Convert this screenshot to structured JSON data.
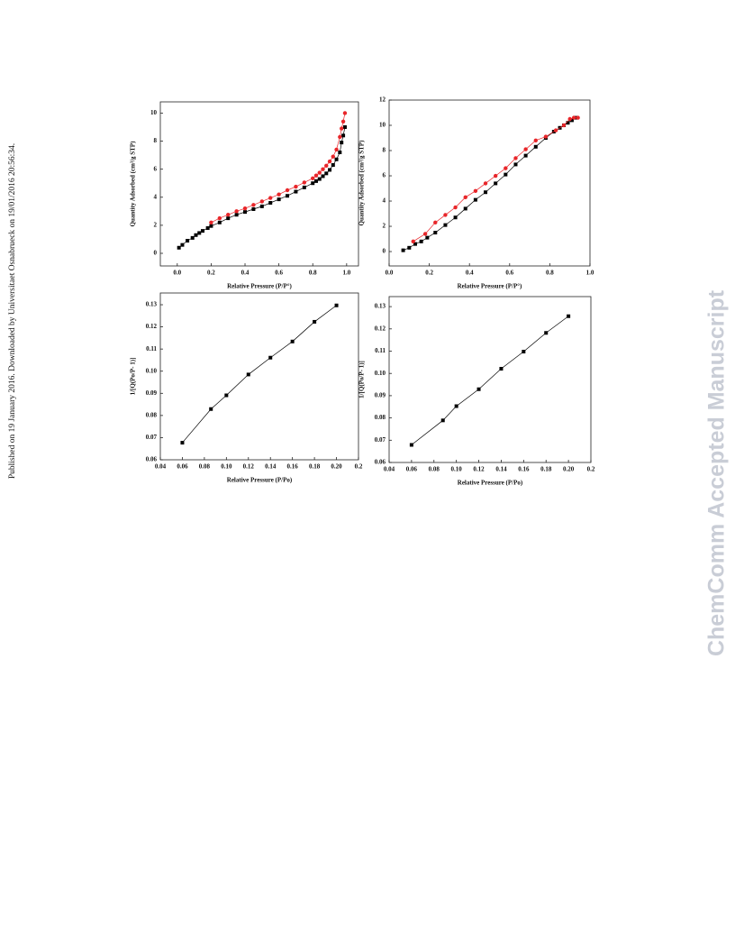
{
  "side_note": "Published on 19 January 2016. Downloaded by Universitaet Osnabrueck on 19/01/2016 20:56:34.",
  "watermark": "ChemComm Accepted Manuscript",
  "chart_data": [
    {
      "type": "line",
      "xlabel": "Relative Pressure (P/P°)",
      "ylabel": "Quantity Adsorbed (cm³/g STP)",
      "xlim": [
        -0.1,
        1.07
      ],
      "xticks": [
        {
          "value": 0,
          "label": "0.0"
        },
        0.2,
        0.4,
        0.6,
        0.8,
        {
          "value": 1,
          "label": "1.0"
        }
      ],
      "ylim": [
        -0.9,
        10.8
      ],
      "yticks": [
        0,
        2,
        4,
        6,
        8,
        10
      ],
      "series": [
        {
          "color": "#000000",
          "marker": "square",
          "x": [
            0.01,
            0.03,
            0.06,
            0.09,
            0.11,
            0.13,
            0.15,
            0.18,
            0.2,
            0.25,
            0.3,
            0.35,
            0.4,
            0.45,
            0.5,
            0.55,
            0.6,
            0.65,
            0.7,
            0.75,
            0.8,
            0.82,
            0.84,
            0.86,
            0.88,
            0.9,
            0.92,
            0.94,
            0.96,
            0.97,
            0.98,
            0.99
          ],
          "values": [
            0.4,
            0.6,
            0.9,
            1.1,
            1.3,
            1.45,
            1.6,
            1.8,
            1.95,
            2.2,
            2.5,
            2.75,
            2.95,
            3.15,
            3.35,
            3.6,
            3.85,
            4.1,
            4.4,
            4.7,
            5.0,
            5.15,
            5.3,
            5.5,
            5.7,
            5.95,
            6.3,
            6.7,
            7.2,
            7.9,
            8.4,
            9.0
          ]
        },
        {
          "color": "#e8262a",
          "marker": "circle",
          "x": [
            0.2,
            0.25,
            0.3,
            0.35,
            0.4,
            0.45,
            0.5,
            0.55,
            0.6,
            0.65,
            0.7,
            0.75,
            0.8,
            0.82,
            0.84,
            0.86,
            0.88,
            0.9,
            0.92,
            0.94,
            0.96,
            0.97,
            0.98,
            0.99
          ],
          "values": [
            2.2,
            2.5,
            2.75,
            3.0,
            3.2,
            3.45,
            3.7,
            3.95,
            4.2,
            4.5,
            4.75,
            5.05,
            5.35,
            5.55,
            5.75,
            6.0,
            6.25,
            6.55,
            6.9,
            7.4,
            8.3,
            8.9,
            9.4,
            10.0
          ]
        }
      ]
    },
    {
      "type": "line",
      "xlabel": "Relative Pressure (P/P°)",
      "ylabel": "Quantity Adsorbed (cm³/g STP)",
      "xlim": [
        0,
        1
      ],
      "xticks": [
        {
          "value": 0,
          "label": "0.0"
        },
        0.2,
        0.4,
        0.6,
        0.8,
        {
          "value": 1,
          "label": "1.0"
        }
      ],
      "ylim": [
        -1.14,
        12
      ],
      "yticks": [
        0,
        2,
        4,
        6,
        8,
        10,
        12
      ],
      "series": [
        {
          "color": "#000000",
          "marker": "square",
          "x": [
            0.07,
            0.1,
            0.13,
            0.16,
            0.19,
            0.23,
            0.28,
            0.33,
            0.38,
            0.43,
            0.48,
            0.53,
            0.58,
            0.63,
            0.68,
            0.73,
            0.78,
            0.82,
            0.85,
            0.87,
            0.89,
            0.91,
            0.93
          ],
          "values": [
            0.1,
            0.3,
            0.6,
            0.8,
            1.1,
            1.5,
            2.1,
            2.7,
            3.4,
            4.1,
            4.7,
            5.4,
            6.1,
            6.9,
            7.6,
            8.3,
            9.0,
            9.5,
            9.8,
            10.0,
            10.2,
            10.4,
            10.6
          ]
        },
        {
          "color": "#e8262a",
          "marker": "circle",
          "x": [
            0.12,
            0.18,
            0.23,
            0.28,
            0.33,
            0.38,
            0.43,
            0.48,
            0.53,
            0.58,
            0.63,
            0.68,
            0.73,
            0.78,
            0.83,
            0.87,
            0.9,
            0.92,
            0.94
          ],
          "values": [
            0.8,
            1.4,
            2.3,
            2.9,
            3.5,
            4.3,
            4.8,
            5.4,
            6.0,
            6.6,
            7.4,
            8.1,
            8.8,
            9.1,
            9.6,
            10.0,
            10.5,
            10.6,
            10.6
          ]
        }
      ]
    },
    {
      "type": "line",
      "xlabel": "Relative Pressure (P/Po)",
      "ylabel": "1/[Q(Po/P- 1)]",
      "xlim": [
        0.04,
        0.22
      ],
      "xticks": [
        0.04,
        0.06,
        0.08,
        {
          "value": 0.1,
          "label": "0.10"
        },
        0.12,
        0.14,
        0.16,
        0.18,
        {
          "value": 0.2,
          "label": "0.20"
        },
        {
          "value": 0.22,
          "label": "0.2"
        }
      ],
      "ylim": [
        0.06,
        0.1353
      ],
      "yticks": [
        0.06,
        0.07,
        0.08,
        0.09,
        {
          "value": 0.1,
          "label": "0.10"
        },
        0.11,
        0.12,
        0.13
      ],
      "series": [
        {
          "color": "#000000",
          "marker": "square",
          "x": [
            0.06,
            0.086,
            0.1,
            0.12,
            0.14,
            0.16,
            0.18,
            0.2
          ],
          "values": [
            0.0677,
            0.0829,
            0.0891,
            0.0985,
            0.1061,
            0.1134,
            0.1223,
            0.1297
          ]
        }
      ]
    },
    {
      "type": "line",
      "xlabel": "Relative Pressure (P/Po)",
      "ylabel": "1/[Q(Po/P- 1)]",
      "xlim": [
        0.04,
        0.22
      ],
      "xticks": [
        0.04,
        0.06,
        0.08,
        {
          "value": 0.1,
          "label": "0.10"
        },
        0.12,
        0.14,
        0.16,
        0.18,
        {
          "value": 0.2,
          "label": "0.20"
        },
        {
          "value": 0.22,
          "label": "0.2"
        }
      ],
      "ylim": [
        0.06,
        0.1345
      ],
      "yticks": [
        0.06,
        0.07,
        0.08,
        0.09,
        {
          "value": 0.1,
          "label": "0.10"
        },
        0.11,
        0.12,
        0.13
      ],
      "series": [
        {
          "color": "#000000",
          "marker": "square",
          "x": [
            0.06,
            0.088,
            0.1,
            0.12,
            0.14,
            0.16,
            0.18,
            0.2
          ],
          "values": [
            0.0679,
            0.0789,
            0.0853,
            0.0929,
            0.1021,
            0.1098,
            0.1182,
            0.1257
          ]
        }
      ]
    }
  ]
}
